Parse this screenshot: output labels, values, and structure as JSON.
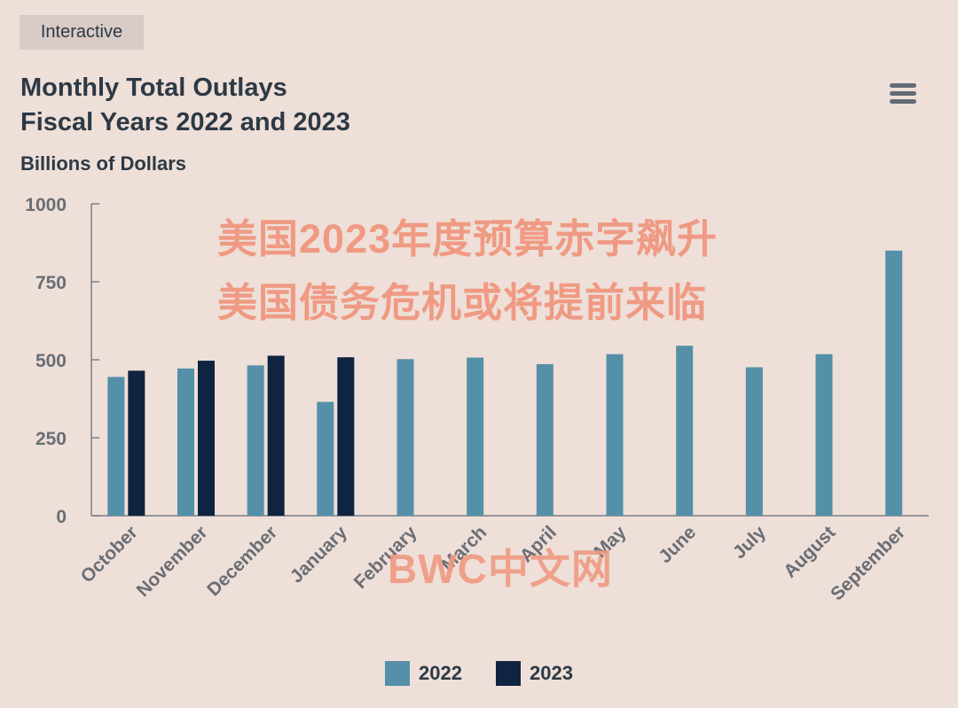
{
  "badge": "Interactive",
  "chart_data": {
    "type": "bar",
    "title_line1": "Monthly Total Outlays",
    "title_line2": "Fiscal Years 2022 and 2023",
    "ylabel": "Billions of Dollars",
    "xlabel": "",
    "ylim": [
      0,
      1000
    ],
    "yticks": [
      0,
      250,
      500,
      750,
      1000
    ],
    "categories": [
      "October",
      "November",
      "December",
      "January",
      "February",
      "March",
      "April",
      "May",
      "June",
      "July",
      "August",
      "September"
    ],
    "series": [
      {
        "name": "2022",
        "color": "#5490a8",
        "values": [
          445,
          472,
          482,
          365,
          502,
          507,
          486,
          518,
          545,
          476,
          518,
          850
        ]
      },
      {
        "name": "2023",
        "color": "#0f2440",
        "values": [
          465,
          497,
          513,
          508,
          null,
          null,
          null,
          null,
          null,
          null,
          null,
          null
        ]
      }
    ],
    "legend_position": "bottom-center"
  },
  "overlay": {
    "line1": "美国2023年度预算赤字飙升",
    "line2": "美国债务危机或将提前来临",
    "watermark": "BWC中文网"
  },
  "colors": {
    "background": "#eedfd8",
    "axis": "#7a7f87",
    "tick_text": "#6a6e75"
  }
}
